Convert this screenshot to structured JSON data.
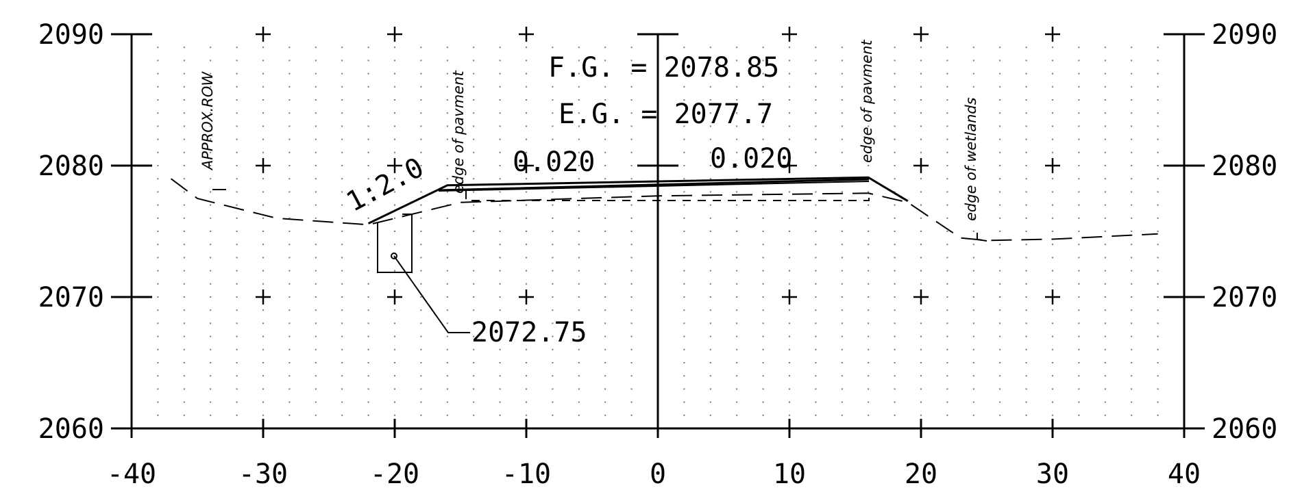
{
  "figure": {
    "type": "roadway-cross-section",
    "x_axis": {
      "range": [
        -40,
        40
      ],
      "ticks": [
        -40,
        -30,
        -20,
        -10,
        0,
        10,
        20,
        30,
        40
      ],
      "tick_labels": [
        "-40",
        "-30",
        "-20",
        "-10",
        "0",
        "10",
        "20",
        "30",
        "40"
      ]
    },
    "y_axis": {
      "range": [
        2060,
        2090
      ],
      "ticks": [
        2060,
        2070,
        2080,
        2090
      ],
      "tick_labels": [
        "2060",
        "2070",
        "2080",
        "2090"
      ]
    },
    "grid": "dotted",
    "annotations": {
      "fg": "F.G.  =  2078.85",
      "eg": "E.G.  =  2077.7",
      "slope_left": "0.020",
      "slope_right": "0.020",
      "side_slope": "1:2.0",
      "ditch_elev": "2072.75",
      "approx_row": "APPROX.ROW",
      "edge_pavement_left": "edge of pavment",
      "edge_pavement_right": "edge of pavment",
      "edge_wetlands": "edge of wetlands"
    },
    "proposed_section": [
      [
        -22,
        2075.6
      ],
      [
        -16,
        2078.5
      ],
      [
        16,
        2079.1
      ],
      [
        19,
        2077.3
      ]
    ],
    "existing_ground": [
      [
        -37,
        2079
      ],
      [
        -35,
        2077.5
      ],
      [
        -29,
        2076
      ],
      [
        -22,
        2075.5
      ],
      [
        -15,
        2077.2
      ],
      [
        0,
        2077.7
      ],
      [
        16,
        2077.9
      ],
      [
        19,
        2077.2
      ],
      [
        23,
        2074.5
      ],
      [
        25,
        2074.3
      ],
      [
        30,
        2074.4
      ],
      [
        38,
        2074.8
      ]
    ],
    "ditch_point": [
      -20,
      2072.75
    ]
  }
}
